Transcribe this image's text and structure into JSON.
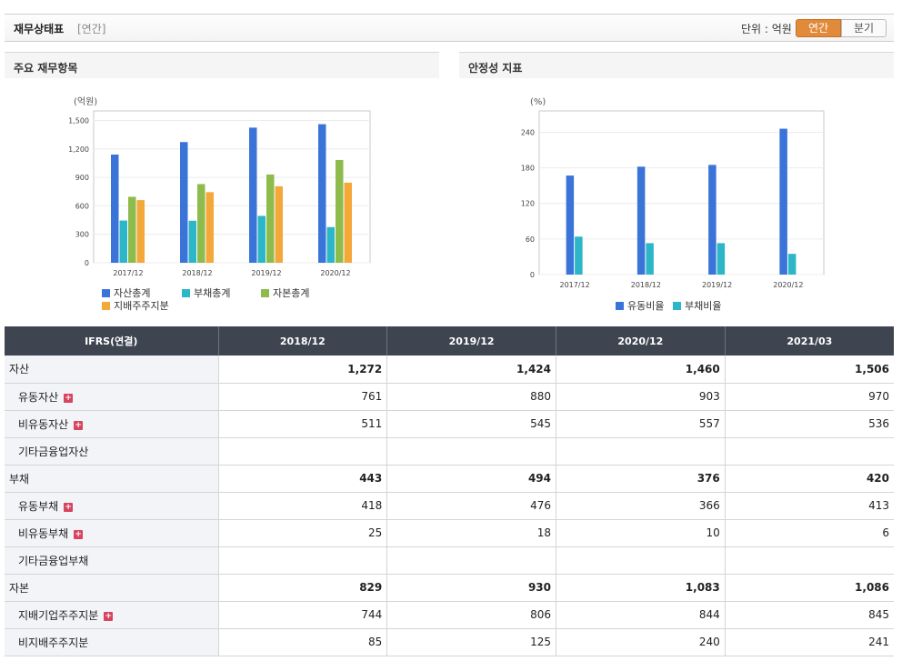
{
  "header": {
    "title": "재무상태표",
    "subtitle": "[연간]",
    "unit_label": "단위 : 억원",
    "toggle_annual": "연간",
    "toggle_quarter": "분기"
  },
  "left_panel": {
    "title": "주요 재무항목"
  },
  "right_panel": {
    "title": "안정성 지표"
  },
  "chart_data": [
    {
      "type": "bar",
      "unit": "(억원)",
      "categories": [
        "2017/12",
        "2018/12",
        "2019/12",
        "2020/12"
      ],
      "yticks": [
        "1,500",
        "1,200",
        "900",
        "600",
        "300",
        "0"
      ],
      "ylim": [
        0,
        1600
      ],
      "series": [
        {
          "name": "자산총계",
          "color": "#3a74d8",
          "values": [
            1140,
            1272,
            1424,
            1460
          ]
        },
        {
          "name": "부채총계",
          "color": "#2cb6c8",
          "values": [
            445,
            443,
            494,
            376
          ]
        },
        {
          "name": "자본총계",
          "color": "#8dbb4c",
          "values": [
            695,
            829,
            930,
            1083
          ]
        },
        {
          "name": "지배주주지분",
          "color": "#f4a83a",
          "values": [
            660,
            744,
            806,
            844
          ]
        }
      ],
      "grid": true,
      "legend_position": "bottom-left"
    },
    {
      "type": "bar",
      "unit": "(%)",
      "categories": [
        "2017/12",
        "2018/12",
        "2019/12",
        "2020/12"
      ],
      "yticks": [
        "240",
        "180",
        "120",
        "60",
        "0"
      ],
      "ylim": [
        0,
        276
      ],
      "series": [
        {
          "name": "유동비율",
          "color": "#3a74d8",
          "values": [
            167,
            182,
            185,
            246
          ]
        },
        {
          "name": "부채비율",
          "color": "#2cb6c8",
          "values": [
            64,
            53,
            53,
            35
          ]
        }
      ],
      "grid": true,
      "legend_position": "bottom-center"
    }
  ],
  "table": {
    "corner": "IFRS(연결)",
    "columns": [
      "2018/12",
      "2019/12",
      "2020/12",
      "2021/03"
    ],
    "rows": [
      {
        "label": "자산",
        "values": [
          "1,272",
          "1,424",
          "1,460",
          "1,506"
        ],
        "kind": "total",
        "expand": false
      },
      {
        "label": "유동자산",
        "values": [
          "761",
          "880",
          "903",
          "970"
        ],
        "kind": "sub",
        "expand": true
      },
      {
        "label": "비유동자산",
        "values": [
          "511",
          "545",
          "557",
          "536"
        ],
        "kind": "sub",
        "expand": true
      },
      {
        "label": "기타금융업자산",
        "values": [
          "",
          "",
          "",
          ""
        ],
        "kind": "sub",
        "expand": false
      },
      {
        "label": "부채",
        "values": [
          "443",
          "494",
          "376",
          "420"
        ],
        "kind": "total",
        "expand": false
      },
      {
        "label": "유동부채",
        "values": [
          "418",
          "476",
          "366",
          "413"
        ],
        "kind": "sub",
        "expand": true
      },
      {
        "label": "비유동부채",
        "values": [
          "25",
          "18",
          "10",
          "6"
        ],
        "kind": "sub",
        "expand": true
      },
      {
        "label": "기타금융업부채",
        "values": [
          "",
          "",
          "",
          ""
        ],
        "kind": "sub",
        "expand": false
      },
      {
        "label": "자본",
        "values": [
          "829",
          "930",
          "1,083",
          "1,086"
        ],
        "kind": "total",
        "expand": false
      },
      {
        "label": "지배기업주주지분",
        "values": [
          "744",
          "806",
          "844",
          "845"
        ],
        "kind": "sub",
        "expand": true
      },
      {
        "label": "비지배주주지분",
        "values": [
          "85",
          "125",
          "240",
          "241"
        ],
        "kind": "sub",
        "expand": false
      }
    ]
  }
}
